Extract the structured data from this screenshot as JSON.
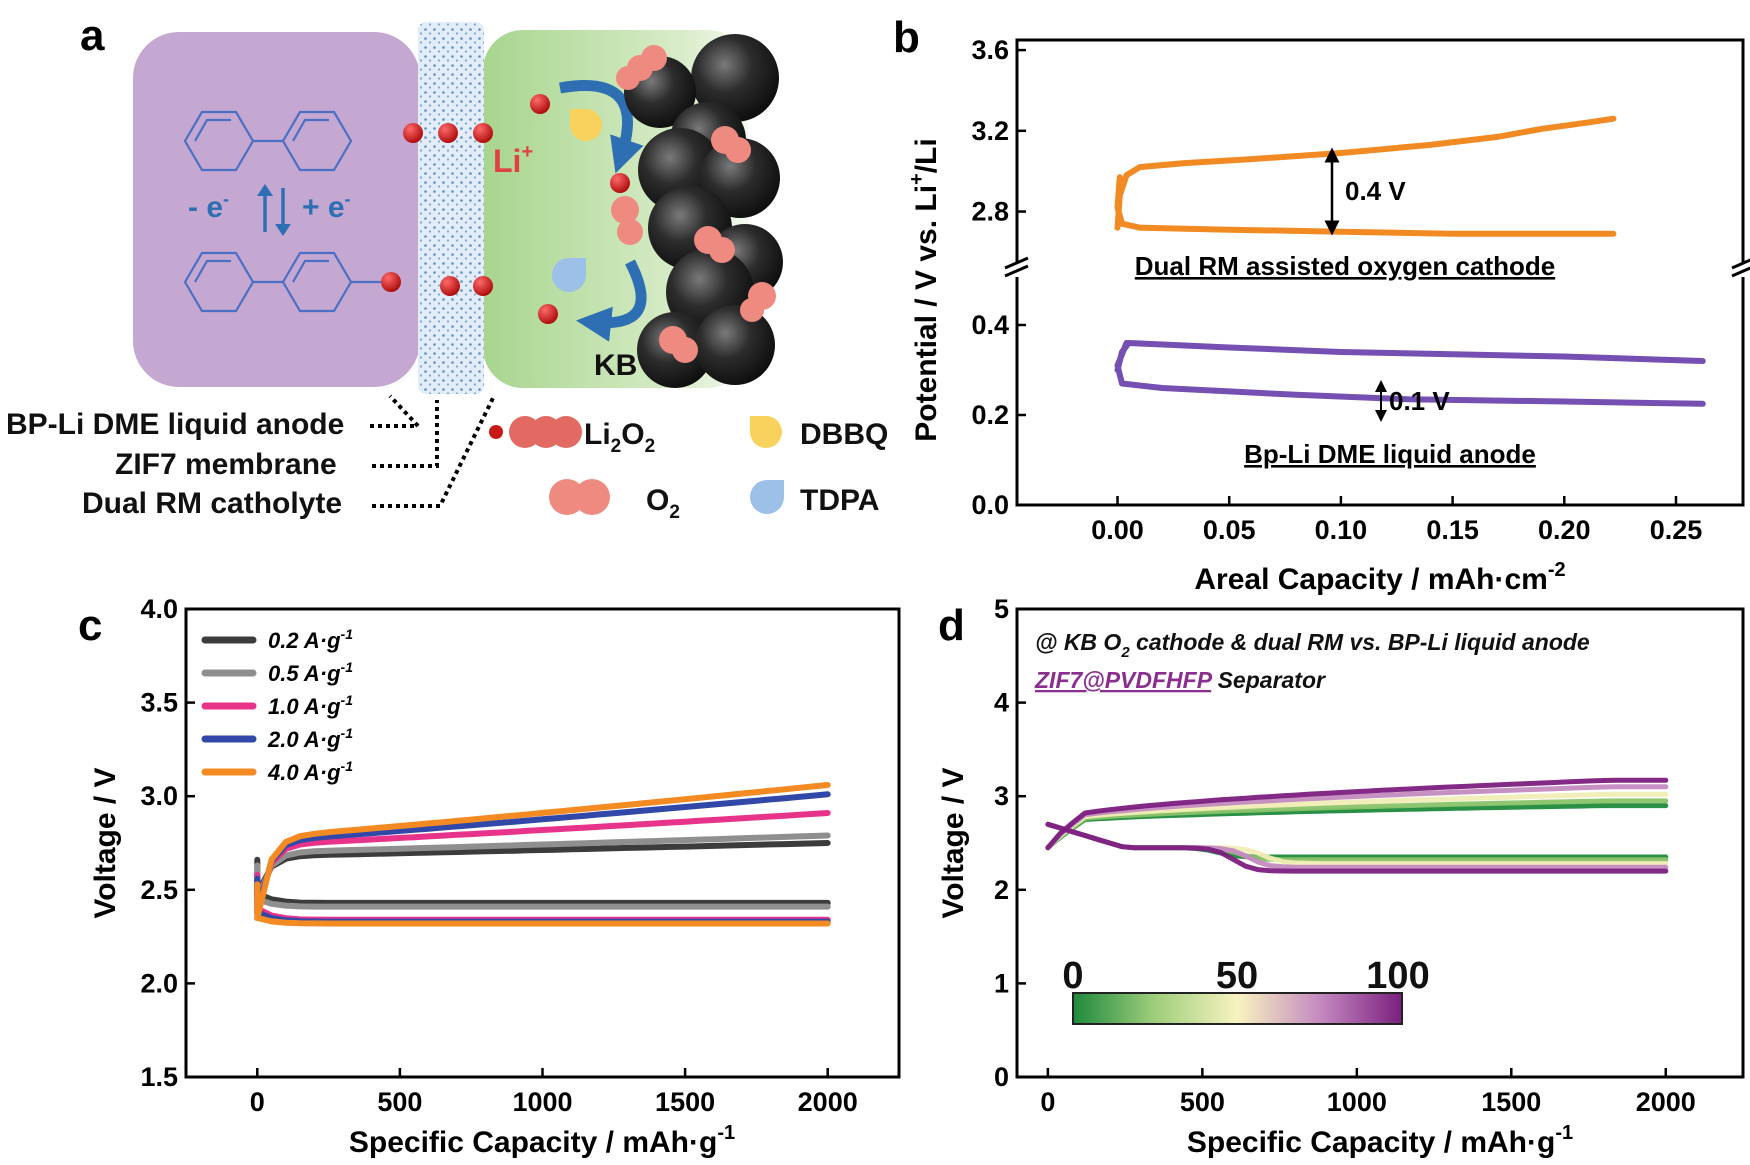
{
  "panel_labels": {
    "a": "a",
    "b": "b",
    "c": "c",
    "d": "d"
  },
  "panel_a": {
    "electron_minus": "- e",
    "electron_plus": "+ e",
    "superscript_minus": "-",
    "li_ion": "Li",
    "li_sup": "+",
    "kb_label": "KB",
    "labels": {
      "anode": "BP-Li DME liquid anode",
      "membrane": "ZIF7 membrane",
      "catholyte": "Dual RM catholyte"
    },
    "legend": {
      "li2o2": "Li",
      "li2o2_sub1": "2",
      "li2o2_mid": "O",
      "li2o2_sub2": "2",
      "o2": "O",
      "o2_sub": "2",
      "dbbq": "DBBQ",
      "tdpa": "TDPA"
    },
    "colors": {
      "anode_box": "#c4a8d2",
      "catholyte_box": "#b9dca3",
      "membrane": "#bdd5ef",
      "sphere": "#2a2a2a",
      "li2o2": "#ef8a80",
      "dbbq": "#f8d25c",
      "tdpa": "#9cc0e8",
      "arrow": "#2e6fb3",
      "li_text": "#e04040",
      "red_dot": "#d22020"
    }
  },
  "chart_data": [
    {
      "panel": "b",
      "type": "line",
      "xlabel": "Areal Capacity / mAh·cm",
      "xlabel_sup": "-2",
      "ylabel_parts": [
        "Potential / V vs. Li",
        "+",
        "/Li"
      ],
      "xlim": [
        -0.045,
        0.28
      ],
      "x_ticks": [
        "0.00",
        "0.05",
        "0.10",
        "0.15",
        "0.20",
        "0.25"
      ],
      "x_tick_values": [
        0,
        0.05,
        0.1,
        0.15,
        0.2,
        0.25
      ],
      "y_ticks_upper": [
        "2.8",
        "3.2",
        "3.6"
      ],
      "y_tick_values_upper": [
        2.8,
        3.2,
        3.6
      ],
      "ylim_upper": [
        2.55,
        3.65
      ],
      "y_ticks_lower": [
        "0.0",
        "0.2",
        "0.4"
      ],
      "y_tick_values_lower": [
        0.0,
        0.2,
        0.4
      ],
      "ylim_lower": [
        0.0,
        0.5
      ],
      "broken_axis": true,
      "series": [
        {
          "color": "#f28a24",
          "axis": "upper",
          "charge": {
            "x": [
              0.0,
              0.001,
              0.004,
              0.01,
              0.03,
              0.06,
              0.1,
              0.14,
              0.17,
              0.19,
              0.21,
              0.222
            ],
            "y": [
              2.72,
              2.88,
              2.98,
              3.02,
              3.04,
              3.06,
              3.09,
              3.13,
              3.17,
              3.21,
              3.24,
              3.26
            ]
          },
          "discharge": {
            "x": [
              0.001,
              0.0,
              0.002,
              0.01,
              0.05,
              0.1,
              0.15,
              0.2,
              0.222
            ],
            "y": [
              2.97,
              2.82,
              2.74,
              2.72,
              2.71,
              2.7,
              2.69,
              2.69,
              2.69
            ]
          }
        },
        {
          "color": "#7550b2",
          "axis": "lower",
          "charge": {
            "x": [
              0.0,
              0.002,
              0.005,
              0.05,
              0.1,
              0.15,
              0.2,
              0.262
            ],
            "y": [
              0.3,
              0.34,
              0.36,
              0.35,
              0.34,
              0.335,
              0.33,
              0.32
            ]
          },
          "discharge": {
            "x": [
              0.004,
              0.0,
              0.002,
              0.02,
              0.08,
              0.13,
              0.2,
              0.262
            ],
            "y": [
              0.36,
              0.31,
              0.27,
              0.26,
              0.245,
              0.235,
              0.23,
              0.225
            ]
          }
        }
      ],
      "annotations": {
        "gap_upper": "0.4 V",
        "gap_lower": "0.1 V",
        "label_upper": "Dual RM assisted oxygen cathode",
        "label_lower": "Bp-Li DME liquid anode"
      }
    },
    {
      "panel": "c",
      "type": "line",
      "xlabel": "Specific Capacity / mAh·g",
      "xlabel_sup": "-1",
      "ylabel": "Voltage / V",
      "xlim": [
        -250,
        2250
      ],
      "ylim": [
        1.5,
        4.0
      ],
      "x_ticks": [
        "0",
        "500",
        "1000",
        "1500",
        "2000"
      ],
      "x_tick_values": [
        0,
        500,
        1000,
        1500,
        2000
      ],
      "y_ticks": [
        "1.5",
        "2.0",
        "2.5",
        "3.0",
        "3.5",
        "4.0"
      ],
      "y_tick_values": [
        1.5,
        2.0,
        2.5,
        3.0,
        3.5,
        4.0
      ],
      "legend_unit": "A·g",
      "legend_sup": "-1",
      "series": [
        {
          "name": "0.2",
          "color": "#3c3c3c",
          "charge_end": 2.75,
          "charge_plateau": 2.68,
          "discharge_plateau": 2.43,
          "start": 2.48
        },
        {
          "name": "0.5",
          "color": "#8f8f8f",
          "charge_end": 2.79,
          "charge_plateau": 2.7,
          "discharge_plateau": 2.41,
          "start": 2.45
        },
        {
          "name": "1.0",
          "color": "#e8338a",
          "charge_end": 2.91,
          "charge_plateau": 2.74,
          "discharge_plateau": 2.34,
          "start": 2.4
        },
        {
          "name": "2.0",
          "color": "#3148a8",
          "charge_end": 3.01,
          "charge_plateau": 2.76,
          "discharge_plateau": 2.33,
          "start": 2.38
        },
        {
          "name": "4.0",
          "color": "#f48a22",
          "charge_end": 3.06,
          "charge_plateau": 2.78,
          "discharge_plateau": 2.32,
          "start": 2.35
        }
      ]
    },
    {
      "panel": "d",
      "type": "line",
      "xlabel": "Specific Capacity / mAh·g",
      "xlabel_sup": "-1",
      "ylabel": "Voltage / V",
      "xlim": [
        -100,
        2250
      ],
      "ylim": [
        0,
        5
      ],
      "x_ticks": [
        "0",
        "500",
        "1000",
        "1500",
        "2000"
      ],
      "x_tick_values": [
        0,
        500,
        1000,
        1500,
        2000
      ],
      "y_ticks": [
        "0",
        "1",
        "2",
        "3",
        "4",
        "5"
      ],
      "y_tick_values": [
        0,
        1,
        2,
        3,
        4,
        5
      ],
      "title_line1_a": "@ KB O",
      "title_line1_sub": "2",
      "title_line1_b": " cathode & dual RM vs. BP-Li liquid anode",
      "title_line2_link": "ZIF7@PVDFHFP",
      "title_line2_rest": " Separator",
      "colorbar": {
        "ticks": [
          "0",
          "50",
          "100"
        ],
        "tick_values": [
          0,
          50,
          100
        ],
        "colors": [
          "#1e8a3c",
          "#f7f3c0",
          "#b67ab2",
          "#7b1f7f"
        ]
      },
      "cycle_curves": [
        {
          "cycle": 1,
          "color": "#1e8a3c",
          "charge_end": 2.9,
          "discharge_plateau": 2.35,
          "knee_x": 550
        },
        {
          "cycle": 25,
          "color": "#8ac26a",
          "charge_end": 2.95,
          "discharge_plateau": 2.32,
          "knee_x": 620
        },
        {
          "cycle": 50,
          "color": "#f1edb5",
          "charge_end": 3.02,
          "discharge_plateau": 2.28,
          "knee_x": 700
        },
        {
          "cycle": 75,
          "color": "#c48ac0",
          "charge_end": 3.1,
          "discharge_plateau": 2.24,
          "knee_x": 650
        },
        {
          "cycle": 100,
          "color": "#7b1f7f",
          "charge_end": 3.17,
          "discharge_plateau": 2.2,
          "knee_x": 600
        }
      ]
    }
  ]
}
